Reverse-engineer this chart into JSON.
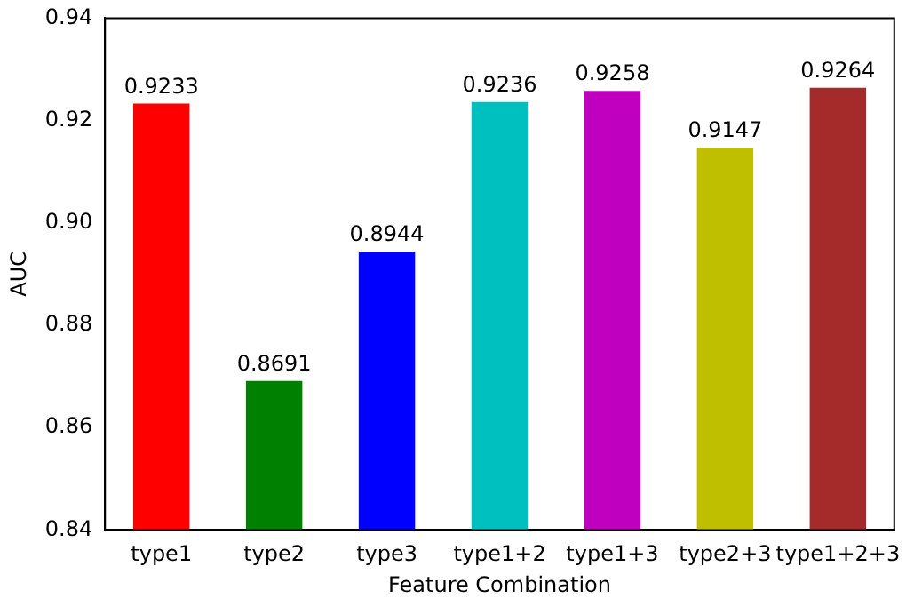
{
  "chart_data": {
    "type": "bar",
    "xlabel": "Feature Combination",
    "ylabel": "AUC",
    "categories": [
      "type1",
      "type2",
      "type3",
      "type1+2",
      "type1+3",
      "type2+3",
      "type1+2+3"
    ],
    "values": [
      0.9233,
      0.8691,
      0.8944,
      0.9236,
      0.9258,
      0.9147,
      0.9264
    ],
    "colors": [
      "#ff0000",
      "#008000",
      "#0000ff",
      "#00bfbf",
      "#bf00bf",
      "#bfbf00",
      "#a52a2a"
    ],
    "ylim": [
      0.84,
      0.94
    ],
    "yticks": [
      0.84,
      0.86,
      0.88,
      {
        "value": 0.9,
        "label": "0.90"
      },
      0.92,
      0.94
    ],
    "data_labels": true,
    "grid": false,
    "legend": false
  }
}
